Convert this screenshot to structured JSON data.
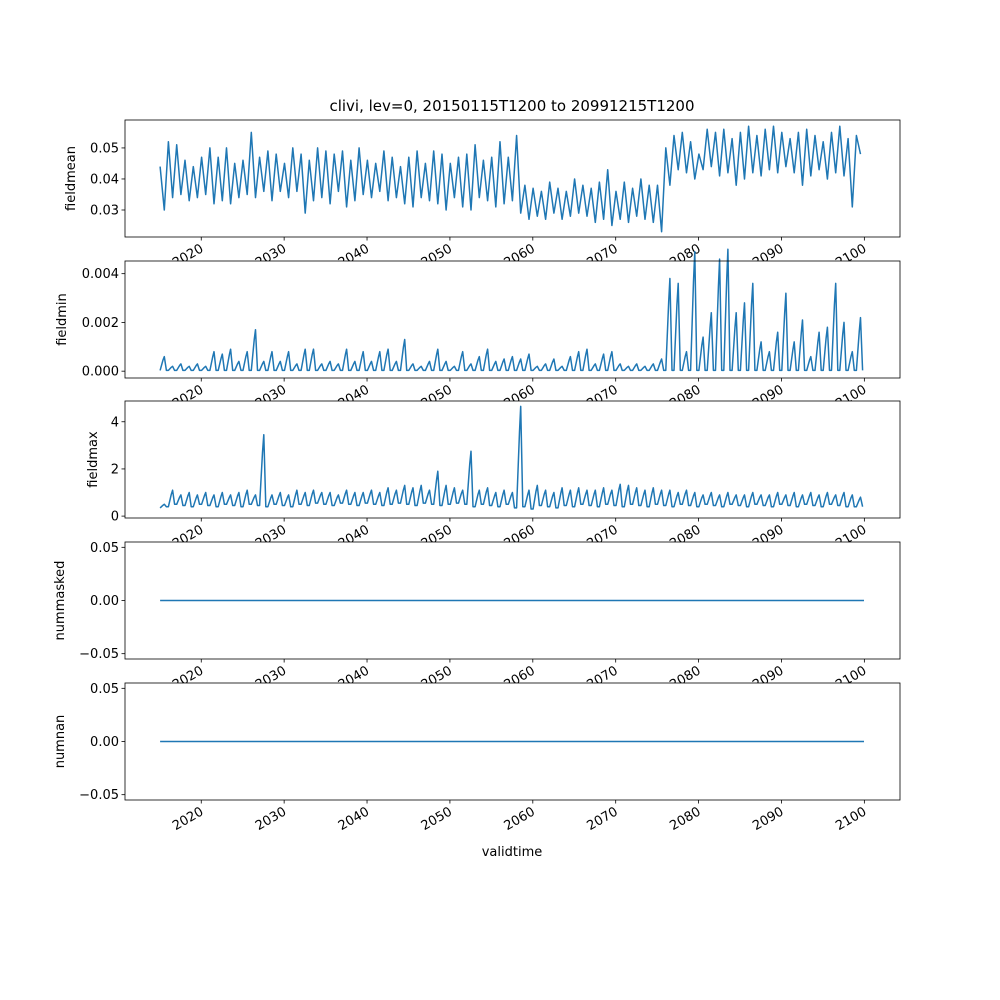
{
  "chart_data": [
    {
      "type": "line",
      "title": "clivi, lev=0, 20150115T1200 to 20991215T1200",
      "ylabel": "fieldmean",
      "xlabel": "",
      "series_color": "#1f77b4",
      "x_start": 2015.04,
      "x_step": 0.5,
      "ylim": [
        0.0213,
        0.059
      ],
      "yticks": [
        0.03,
        0.04,
        0.05
      ],
      "ytick_labels": [
        "0.03",
        "0.04",
        "0.05"
      ],
      "values": [
        0.044,
        0.03,
        0.052,
        0.034,
        0.051,
        0.035,
        0.046,
        0.033,
        0.044,
        0.034,
        0.047,
        0.035,
        0.05,
        0.032,
        0.047,
        0.033,
        0.05,
        0.032,
        0.045,
        0.034,
        0.046,
        0.035,
        0.055,
        0.034,
        0.047,
        0.036,
        0.049,
        0.033,
        0.048,
        0.036,
        0.045,
        0.034,
        0.05,
        0.036,
        0.048,
        0.029,
        0.046,
        0.033,
        0.05,
        0.034,
        0.049,
        0.032,
        0.048,
        0.036,
        0.049,
        0.031,
        0.046,
        0.033,
        0.05,
        0.035,
        0.046,
        0.034,
        0.045,
        0.036,
        0.049,
        0.033,
        0.047,
        0.034,
        0.044,
        0.032,
        0.047,
        0.031,
        0.049,
        0.034,
        0.045,
        0.033,
        0.049,
        0.032,
        0.048,
        0.03,
        0.045,
        0.034,
        0.047,
        0.031,
        0.048,
        0.03,
        0.051,
        0.034,
        0.046,
        0.033,
        0.047,
        0.031,
        0.052,
        0.032,
        0.047,
        0.033,
        0.054,
        0.029,
        0.038,
        0.027,
        0.037,
        0.028,
        0.036,
        0.027,
        0.039,
        0.029,
        0.037,
        0.027,
        0.036,
        0.028,
        0.04,
        0.029,
        0.038,
        0.028,
        0.037,
        0.026,
        0.039,
        0.027,
        0.043,
        0.025,
        0.036,
        0.027,
        0.039,
        0.026,
        0.037,
        0.028,
        0.04,
        0.027,
        0.038,
        0.026,
        0.038,
        0.023,
        0.05,
        0.038,
        0.054,
        0.043,
        0.055,
        0.042,
        0.052,
        0.04,
        0.048,
        0.043,
        0.056,
        0.044,
        0.055,
        0.041,
        0.056,
        0.042,
        0.053,
        0.038,
        0.055,
        0.04,
        0.057,
        0.042,
        0.054,
        0.041,
        0.056,
        0.043,
        0.057,
        0.042,
        0.055,
        0.044,
        0.053,
        0.042,
        0.055,
        0.038,
        0.056,
        0.041,
        0.054,
        0.043,
        0.052,
        0.04,
        0.055,
        0.042,
        0.057,
        0.041,
        0.053,
        0.031,
        0.054,
        0.048
      ]
    },
    {
      "type": "line",
      "ylabel": "fieldmin",
      "series_color": "#1f77b4",
      "x_start": 2015.04,
      "x_step": 1,
      "baseline": 3e-05,
      "ylim": [
        -0.00028,
        0.00452
      ],
      "yticks": [
        0,
        0.002,
        0.004
      ],
      "ytick_labels": [
        "0.000",
        "0.002",
        "0.004"
      ],
      "annual_peaks": [
        0.0006,
        0.0002,
        0.0003,
        0.0002,
        0.0003,
        0.0002,
        0.0008,
        0.0007,
        0.0009,
        0.0004,
        0.0008,
        0.0017,
        0.0004,
        0.0008,
        0.0004,
        0.0008,
        0.0003,
        0.0009,
        0.0009,
        0.0003,
        0.0004,
        0.0003,
        0.0009,
        0.0004,
        0.0008,
        0.0004,
        0.0008,
        0.0009,
        0.0004,
        0.0013,
        0.0003,
        0.0002,
        0.0004,
        0.0009,
        0.0004,
        0.0002,
        0.0008,
        0.0003,
        0.0006,
        0.0009,
        0.0004,
        0.0005,
        0.0006,
        0.0005,
        0.0007,
        0.0002,
        0.0003,
        0.0005,
        0.0002,
        0.0006,
        0.0008,
        0.0009,
        0.0003,
        0.0007,
        0.0008,
        0.0003,
        0.0002,
        0.0003,
        0.0002,
        0.0003,
        0.0005,
        0.0038,
        0.0036,
        0.0008,
        0.0049,
        0.0014,
        0.0024,
        0.0046,
        0.005,
        0.0024,
        0.0028,
        0.0036,
        0.0012,
        0.0008,
        0.0016,
        0.0032,
        0.0012,
        0.0021,
        0.0006,
        0.0016,
        0.0018,
        0.0036,
        0.002,
        0.0008,
        0.0022
      ]
    },
    {
      "type": "line",
      "ylabel": "fieldmax",
      "series_color": "#1f77b4",
      "x_start": 2015.04,
      "x_step": 1,
      "ylim": [
        -0.08,
        4.88
      ],
      "yticks": [
        0,
        2,
        4
      ],
      "ytick_labels": [
        "0",
        "2",
        "4"
      ],
      "annual_peaks": [
        0.5,
        1.1,
        0.9,
        1.0,
        0.9,
        1.0,
        0.9,
        1.0,
        0.9,
        1.0,
        1.1,
        0.9,
        3.45,
        0.9,
        1.0,
        0.9,
        1.1,
        1.0,
        1.1,
        1.0,
        1.0,
        0.9,
        1.1,
        1.0,
        1.0,
        1.1,
        1.0,
        1.2,
        1.1,
        1.3,
        1.2,
        1.3,
        1.1,
        1.9,
        1.3,
        1.2,
        1.1,
        2.75,
        1.1,
        1.2,
        1.0,
        1.1,
        1.0,
        4.65,
        1.1,
        1.3,
        1.1,
        1.0,
        1.2,
        1.1,
        1.2,
        1.1,
        1.1,
        1.2,
        1.1,
        1.35,
        1.3,
        1.2,
        1.1,
        1.2,
        1.1,
        1.1,
        1.0,
        1.1,
        1.0,
        0.9,
        1.0,
        0.9,
        1.0,
        0.9,
        0.9,
        1.0,
        0.9,
        0.9,
        1.0,
        0.9,
        1.0,
        0.9,
        1.0,
        0.9,
        1.0,
        0.9,
        1.0,
        0.9,
        0.8
      ],
      "annual_lows": [
        0.35,
        0.4,
        0.5,
        0.45,
        0.4,
        0.5,
        0.45,
        0.4,
        0.5,
        0.45,
        0.4,
        0.5,
        0.45,
        0.4,
        0.5,
        0.45,
        0.4,
        0.5,
        0.45,
        0.55,
        0.5,
        0.45,
        0.55,
        0.5,
        0.45,
        0.55,
        0.5,
        0.45,
        0.5,
        0.55,
        0.5,
        0.45,
        0.55,
        0.5,
        0.45,
        0.5,
        0.55,
        0.5,
        0.4,
        0.5,
        0.45,
        0.4,
        0.5,
        0.35,
        0.4,
        0.3,
        0.45,
        0.4,
        0.35,
        0.45,
        0.4,
        0.5,
        0.45,
        0.4,
        0.5,
        0.45,
        0.4,
        0.5,
        0.45,
        0.4,
        0.5,
        0.45,
        0.4,
        0.5,
        0.45,
        0.4,
        0.5,
        0.45,
        0.4,
        0.5,
        0.45,
        0.4,
        0.5,
        0.45,
        0.4,
        0.5,
        0.45,
        0.4,
        0.5,
        0.45,
        0.4,
        0.5,
        0.45,
        0.4,
        0.4
      ]
    },
    {
      "type": "line",
      "ylabel": "nummasked",
      "series_color": "#1f77b4",
      "x": [
        2015.04,
        2099.96
      ],
      "values": [
        0,
        0
      ],
      "ylim": [
        -0.055,
        0.055
      ],
      "yticks": [
        -0.05,
        0,
        0.05
      ],
      "ytick_labels": [
        "−0.05",
        "0.00",
        "0.05"
      ]
    },
    {
      "type": "line",
      "ylabel": "numnan",
      "xlabel": "validtime",
      "series_color": "#1f77b4",
      "x": [
        2015.04,
        2099.96
      ],
      "values": [
        0,
        0
      ],
      "ylim": [
        -0.055,
        0.055
      ],
      "yticks": [
        -0.05,
        0,
        0.05
      ],
      "ytick_labels": [
        "−0.05",
        "0.00",
        "0.05"
      ]
    }
  ],
  "x_axis": {
    "xlim": [
      2010.8,
      2104.3
    ],
    "ticks": [
      2020,
      2030,
      2040,
      2050,
      2060,
      2070,
      2080,
      2090,
      2100
    ],
    "tick_labels": [
      "2020",
      "2030",
      "2040",
      "2050",
      "2060",
      "2070",
      "2080",
      "2090",
      "2100"
    ]
  }
}
